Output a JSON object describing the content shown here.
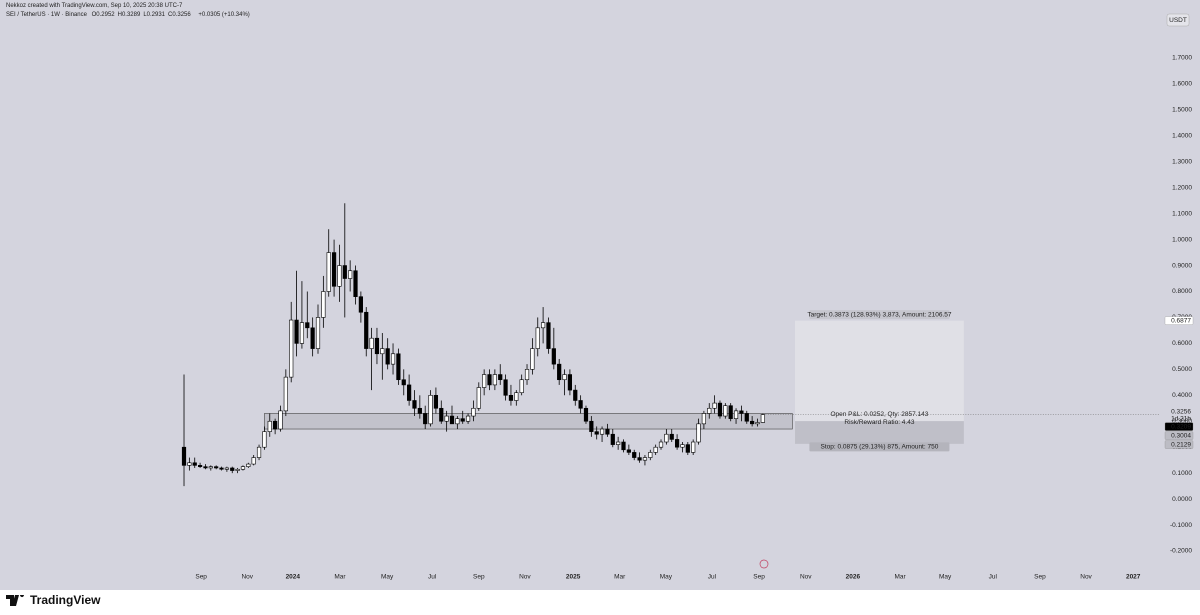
{
  "header": {
    "attribution": "Nekkoz created with TradingView.com, Sep 10, 2025 20:38 UTC-7",
    "symbol": "SEI / TetherUS · 1W · Binance",
    "ohlc_labels": [
      "O",
      "H",
      "L",
      "C"
    ],
    "change": "+0.0305 (+10.34%)"
  },
  "chart_data": {
    "type": "candlestick",
    "currency": "USDT",
    "up_color": "#ffffff",
    "down_color": "#000000",
    "ohlc": [
      [
        0.2,
        0.48,
        0.05,
        0.13
      ],
      [
        0.13,
        0.16,
        0.11,
        0.14
      ],
      [
        0.14,
        0.16,
        0.12,
        0.13
      ],
      [
        0.13,
        0.14,
        0.12,
        0.125
      ],
      [
        0.125,
        0.135,
        0.115,
        0.12
      ],
      [
        0.12,
        0.13,
        0.11,
        0.125
      ],
      [
        0.125,
        0.13,
        0.115,
        0.12
      ],
      [
        0.12,
        0.125,
        0.11,
        0.115
      ],
      [
        0.115,
        0.125,
        0.105,
        0.12
      ],
      [
        0.12,
        0.125,
        0.1,
        0.11
      ],
      [
        0.11,
        0.12,
        0.1,
        0.115
      ],
      [
        0.115,
        0.13,
        0.11,
        0.125
      ],
      [
        0.125,
        0.14,
        0.12,
        0.135
      ],
      [
        0.135,
        0.17,
        0.13,
        0.16
      ],
      [
        0.16,
        0.21,
        0.15,
        0.2
      ],
      [
        0.2,
        0.28,
        0.19,
        0.26
      ],
      [
        0.26,
        0.33,
        0.24,
        0.3
      ],
      [
        0.3,
        0.31,
        0.25,
        0.27
      ],
      [
        0.27,
        0.36,
        0.26,
        0.34
      ],
      [
        0.34,
        0.5,
        0.32,
        0.47
      ],
      [
        0.47,
        0.76,
        0.45,
        0.69
      ],
      [
        0.69,
        0.88,
        0.55,
        0.6
      ],
      [
        0.6,
        0.84,
        0.58,
        0.68
      ],
      [
        0.68,
        0.8,
        0.62,
        0.66
      ],
      [
        0.66,
        0.7,
        0.55,
        0.58
      ],
      [
        0.58,
        0.75,
        0.56,
        0.7
      ],
      [
        0.7,
        0.86,
        0.66,
        0.8
      ],
      [
        0.8,
        1.04,
        0.78,
        0.95
      ],
      [
        0.95,
        1.0,
        0.78,
        0.82
      ],
      [
        0.82,
        0.98,
        0.76,
        0.9
      ],
      [
        0.9,
        1.14,
        0.7,
        0.85
      ],
      [
        0.85,
        0.92,
        0.8,
        0.88
      ],
      [
        0.88,
        0.9,
        0.75,
        0.78
      ],
      [
        0.78,
        0.8,
        0.68,
        0.72
      ],
      [
        0.72,
        0.74,
        0.55,
        0.58
      ],
      [
        0.58,
        0.66,
        0.42,
        0.62
      ],
      [
        0.62,
        0.66,
        0.52,
        0.56
      ],
      [
        0.56,
        0.64,
        0.46,
        0.58
      ],
      [
        0.58,
        0.62,
        0.5,
        0.52
      ],
      [
        0.52,
        0.6,
        0.48,
        0.56
      ],
      [
        0.56,
        0.58,
        0.44,
        0.46
      ],
      [
        0.46,
        0.5,
        0.4,
        0.44
      ],
      [
        0.44,
        0.48,
        0.36,
        0.38
      ],
      [
        0.38,
        0.42,
        0.32,
        0.35
      ],
      [
        0.35,
        0.4,
        0.31,
        0.33
      ],
      [
        0.33,
        0.36,
        0.27,
        0.29
      ],
      [
        0.29,
        0.42,
        0.28,
        0.4
      ],
      [
        0.4,
        0.43,
        0.33,
        0.35
      ],
      [
        0.35,
        0.38,
        0.29,
        0.3
      ],
      [
        0.3,
        0.34,
        0.26,
        0.32
      ],
      [
        0.32,
        0.36,
        0.29,
        0.29
      ],
      [
        0.29,
        0.32,
        0.27,
        0.31
      ],
      [
        0.31,
        0.34,
        0.29,
        0.3
      ],
      [
        0.3,
        0.33,
        0.29,
        0.32
      ],
      [
        0.32,
        0.38,
        0.3,
        0.35
      ],
      [
        0.35,
        0.45,
        0.34,
        0.43
      ],
      [
        0.43,
        0.5,
        0.4,
        0.48
      ],
      [
        0.48,
        0.5,
        0.42,
        0.44
      ],
      [
        0.44,
        0.5,
        0.42,
        0.48
      ],
      [
        0.48,
        0.52,
        0.44,
        0.46
      ],
      [
        0.46,
        0.48,
        0.38,
        0.4
      ],
      [
        0.4,
        0.44,
        0.36,
        0.38
      ],
      [
        0.38,
        0.42,
        0.36,
        0.41
      ],
      [
        0.41,
        0.48,
        0.4,
        0.46
      ],
      [
        0.46,
        0.52,
        0.44,
        0.5
      ],
      [
        0.5,
        0.62,
        0.48,
        0.58
      ],
      [
        0.58,
        0.7,
        0.55,
        0.66
      ],
      [
        0.66,
        0.74,
        0.6,
        0.68
      ],
      [
        0.68,
        0.7,
        0.56,
        0.58
      ],
      [
        0.58,
        0.66,
        0.5,
        0.52
      ],
      [
        0.52,
        0.54,
        0.44,
        0.46
      ],
      [
        0.46,
        0.5,
        0.4,
        0.48
      ],
      [
        0.48,
        0.5,
        0.4,
        0.42
      ],
      [
        0.42,
        0.44,
        0.36,
        0.38
      ],
      [
        0.38,
        0.4,
        0.33,
        0.35
      ],
      [
        0.35,
        0.36,
        0.29,
        0.3
      ],
      [
        0.3,
        0.32,
        0.24,
        0.26
      ],
      [
        0.26,
        0.28,
        0.23,
        0.25
      ],
      [
        0.25,
        0.28,
        0.22,
        0.27
      ],
      [
        0.27,
        0.29,
        0.24,
        0.25
      ],
      [
        0.25,
        0.27,
        0.2,
        0.21
      ],
      [
        0.21,
        0.24,
        0.19,
        0.22
      ],
      [
        0.22,
        0.23,
        0.18,
        0.19
      ],
      [
        0.19,
        0.21,
        0.17,
        0.18
      ],
      [
        0.18,
        0.19,
        0.15,
        0.16
      ],
      [
        0.16,
        0.18,
        0.14,
        0.15
      ],
      [
        0.15,
        0.17,
        0.13,
        0.16
      ],
      [
        0.16,
        0.19,
        0.15,
        0.18
      ],
      [
        0.18,
        0.21,
        0.17,
        0.2
      ],
      [
        0.2,
        0.23,
        0.19,
        0.22
      ],
      [
        0.22,
        0.27,
        0.21,
        0.25
      ],
      [
        0.25,
        0.27,
        0.22,
        0.23
      ],
      [
        0.23,
        0.25,
        0.19,
        0.2
      ],
      [
        0.2,
        0.22,
        0.18,
        0.21
      ],
      [
        0.21,
        0.22,
        0.17,
        0.18
      ],
      [
        0.18,
        0.23,
        0.17,
        0.22
      ],
      [
        0.22,
        0.31,
        0.21,
        0.29
      ],
      [
        0.29,
        0.34,
        0.27,
        0.33
      ],
      [
        0.33,
        0.37,
        0.31,
        0.35
      ],
      [
        0.35,
        0.4,
        0.33,
        0.37
      ],
      [
        0.37,
        0.38,
        0.31,
        0.32
      ],
      [
        0.32,
        0.37,
        0.31,
        0.36
      ],
      [
        0.36,
        0.37,
        0.3,
        0.31
      ],
      [
        0.31,
        0.35,
        0.29,
        0.34
      ],
      [
        0.34,
        0.36,
        0.3,
        0.33
      ],
      [
        0.33,
        0.34,
        0.29,
        0.3
      ],
      [
        0.3,
        0.32,
        0.28,
        0.29
      ],
      [
        0.29,
        0.31,
        0.28,
        0.2952
      ],
      [
        0.2952,
        0.3289,
        0.2931,
        0.3256
      ]
    ],
    "xlim": [
      -33.4,
      182.1
    ],
    "xticks": [
      {
        "value": 3.2,
        "label": "Sep"
      },
      {
        "value": 11.8,
        "label": "Nov"
      },
      {
        "value": 20.3,
        "label": "2024"
      },
      {
        "value": 29.1,
        "label": "Mar"
      },
      {
        "value": 37.9,
        "label": "May"
      },
      {
        "value": 46.3,
        "label": "Jul"
      },
      {
        "value": 55.0,
        "label": "Sep"
      },
      {
        "value": 63.6,
        "label": "Nov"
      },
      {
        "value": 72.6,
        "label": "2025"
      },
      {
        "value": 81.3,
        "label": "Mar"
      },
      {
        "value": 89.9,
        "label": "May"
      },
      {
        "value": 98.5,
        "label": "Jul"
      },
      {
        "value": 107.3,
        "label": "Sep"
      },
      {
        "value": 116.0,
        "label": "Nov"
      },
      {
        "value": 124.8,
        "label": "2026"
      },
      {
        "value": 133.6,
        "label": "Mar"
      },
      {
        "value": 142.0,
        "label": "May"
      },
      {
        "value": 150.9,
        "label": "Jul"
      },
      {
        "value": 159.7,
        "label": "Sep"
      },
      {
        "value": 168.3,
        "label": "Nov"
      },
      {
        "value": 177.1,
        "label": "2027"
      }
    ],
    "ylim": [
      -0.331,
      1.877
    ],
    "yticks": [
      {
        "value": -0.2,
        "label": "-0.2000"
      },
      {
        "value": -0.1,
        "label": "-0.1000"
      },
      {
        "value": 0,
        "label": "0.0000"
      },
      {
        "value": 0.1,
        "label": "0.1000"
      },
      {
        "value": 0.2,
        "label": "0.2000"
      },
      {
        "value": 0.3,
        "label": "0.3000"
      },
      {
        "value": 0.4,
        "label": "0.4000"
      },
      {
        "value": 0.5,
        "label": "0.5000"
      },
      {
        "value": 0.6,
        "label": "0.6000"
      },
      {
        "value": 0.7,
        "label": "0.7000"
      },
      {
        "value": 0.8,
        "label": "0.8000"
      },
      {
        "value": 0.9,
        "label": "0.9000"
      },
      {
        "value": 1.0,
        "label": "1.0000"
      },
      {
        "value": 1.1,
        "label": "1.1000"
      },
      {
        "value": 1.2,
        "label": "1.2000"
      },
      {
        "value": 1.3,
        "label": "1.3000"
      },
      {
        "value": 1.4,
        "label": "1.4000"
      },
      {
        "value": 1.5,
        "label": "1.5000"
      },
      {
        "value": 1.6,
        "label": "1.6000"
      },
      {
        "value": 1.7,
        "label": "1.7000"
      }
    ],
    "grid": false,
    "countdown": "1d 21h",
    "marker_price": 0.3209,
    "zone": {
      "x": [
        15,
        113.5
      ],
      "y": [
        0.27,
        0.33
      ]
    },
    "position": {
      "x": [
        114,
        145.5
      ],
      "entry": 0.3004,
      "target": 0.6877,
      "stop": 0.2129,
      "target_label": "Target: 0.3873 (128.93%) 3,873, Amount: 2106.57",
      "pnl_label": "Open P&L: 0.0252, Qty: 2857.143",
      "ratio_label": "Risk/Reward Ratio: 4.43",
      "stop_label": "Stop: 0.0875 (29.13%) 875, Amount: 750"
    }
  },
  "footer": {
    "brand": "TradingView"
  }
}
